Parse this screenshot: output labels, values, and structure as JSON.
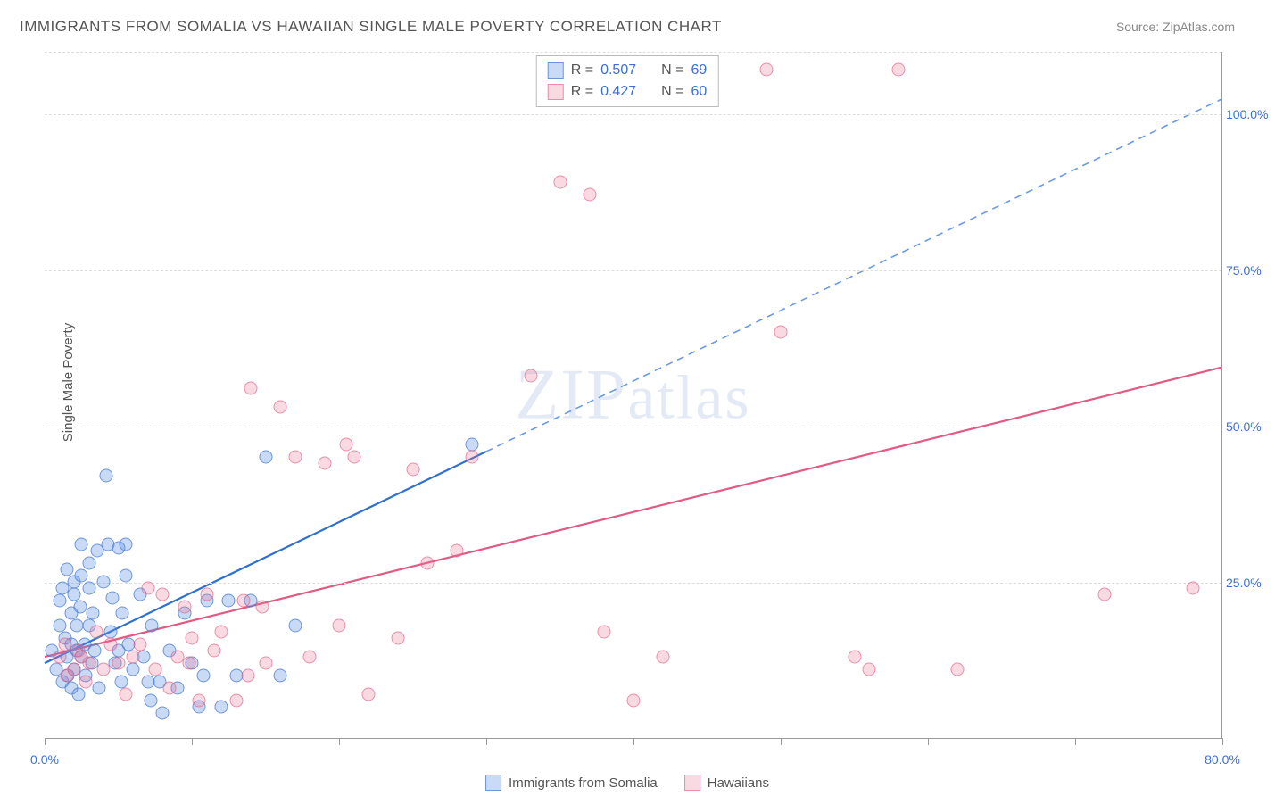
{
  "title": "IMMIGRANTS FROM SOMALIA VS HAWAIIAN SINGLE MALE POVERTY CORRELATION CHART",
  "source_label": "Source:",
  "source_value": "ZipAtlas.com",
  "y_axis_label": "Single Male Poverty",
  "watermark": "ZIPatlas",
  "chart": {
    "type": "scatter",
    "background_color": "#ffffff",
    "grid_color": "#dddddd",
    "axis_color": "#999999",
    "tick_label_color": "#3d6fd6",
    "axis_label_color": "#555555",
    "title_color": "#555555",
    "xlim": [
      0,
      80
    ],
    "ylim": [
      0,
      110
    ],
    "x_ticks": [
      0,
      10,
      20,
      30,
      40,
      50,
      60,
      70,
      80
    ],
    "x_tick_labels": {
      "0": "0.0%",
      "80": "80.0%"
    },
    "y_ticks": [
      25,
      50,
      75,
      100
    ],
    "y_tick_labels": {
      "25": "25.0%",
      "50": "50.0%",
      "75": "75.0%",
      "100": "100.0%"
    },
    "point_radius": 7.5,
    "series": [
      {
        "key": "a",
        "name": "Immigrants from Somalia",
        "fill_color": "rgba(96,150,230,0.35)",
        "stroke_color": "rgba(70,120,210,0.7)",
        "trend_color": "#2f6fd0",
        "trend_dash_color": "#6a9ae5",
        "trend_solid_xmax": 30,
        "trend_width": 2.2,
        "R": "0.507",
        "N": "69",
        "trend": {
          "intercept": 12,
          "slope": 1.13
        },
        "points": [
          [
            0.5,
            14
          ],
          [
            0.8,
            11
          ],
          [
            1,
            18
          ],
          [
            1,
            22
          ],
          [
            1.2,
            9
          ],
          [
            1.2,
            24
          ],
          [
            1.4,
            16
          ],
          [
            1.5,
            13
          ],
          [
            1.5,
            27
          ],
          [
            1.6,
            10
          ],
          [
            1.8,
            20
          ],
          [
            1.8,
            8
          ],
          [
            1.8,
            15
          ],
          [
            2,
            23
          ],
          [
            2,
            25
          ],
          [
            2,
            11
          ],
          [
            2.2,
            14
          ],
          [
            2.2,
            18
          ],
          [
            2.3,
            7
          ],
          [
            2.4,
            21
          ],
          [
            2.5,
            31
          ],
          [
            2.5,
            13
          ],
          [
            2.5,
            26
          ],
          [
            2.7,
            15
          ],
          [
            2.8,
            10
          ],
          [
            3,
            24
          ],
          [
            3,
            28
          ],
          [
            3,
            18
          ],
          [
            3.2,
            12
          ],
          [
            3.3,
            20
          ],
          [
            3.4,
            14
          ],
          [
            3.6,
            30
          ],
          [
            3.7,
            8
          ],
          [
            4,
            25
          ],
          [
            4.2,
            42
          ],
          [
            4.5,
            17
          ],
          [
            4.6,
            22.5
          ],
          [
            4.8,
            12
          ],
          [
            5,
            30.5
          ],
          [
            5,
            14
          ],
          [
            5.2,
            9
          ],
          [
            5.3,
            20
          ],
          [
            5.5,
            26
          ],
          [
            5.7,
            15
          ],
          [
            6,
            11
          ],
          [
            6.5,
            23
          ],
          [
            6.7,
            13
          ],
          [
            7,
            9
          ],
          [
            7.2,
            6
          ],
          [
            7.3,
            18
          ],
          [
            7.8,
            9
          ],
          [
            8,
            4
          ],
          [
            8.5,
            14
          ],
          [
            9,
            8
          ],
          [
            9.5,
            20
          ],
          [
            10,
            12
          ],
          [
            10.5,
            5
          ],
          [
            10.8,
            10
          ],
          [
            11,
            22
          ],
          [
            12,
            5
          ],
          [
            12.5,
            22
          ],
          [
            13,
            10
          ],
          [
            14,
            22
          ],
          [
            15,
            45
          ],
          [
            16,
            10
          ],
          [
            17,
            18
          ],
          [
            29,
            47
          ],
          [
            4.3,
            31
          ],
          [
            5.5,
            31
          ]
        ]
      },
      {
        "key": "b",
        "name": "Hawaiians",
        "fill_color": "rgba(235,120,150,0.28)",
        "stroke_color": "rgba(225,90,130,0.6)",
        "trend_color": "#e25a82",
        "trend_dash_color": "#e25a82",
        "trend_solid_xmax": 80,
        "trend_width": 2.2,
        "R": "0.427",
        "N": "60",
        "trend": {
          "intercept": 13,
          "slope": 0.58
        },
        "points": [
          [
            1,
            13
          ],
          [
            1.4,
            15
          ],
          [
            1.5,
            10
          ],
          [
            2,
            11
          ],
          [
            2.3,
            14
          ],
          [
            2.5,
            13
          ],
          [
            2.8,
            9
          ],
          [
            3,
            12
          ],
          [
            3.5,
            17
          ],
          [
            4,
            11
          ],
          [
            4.5,
            15
          ],
          [
            5,
            12
          ],
          [
            5.5,
            7
          ],
          [
            6,
            13
          ],
          [
            6.5,
            15
          ],
          [
            7,
            24
          ],
          [
            7.5,
            11
          ],
          [
            8,
            23
          ],
          [
            8.5,
            8
          ],
          [
            9,
            13
          ],
          [
            9.5,
            21
          ],
          [
            9.8,
            12
          ],
          [
            10,
            16
          ],
          [
            10.5,
            6
          ],
          [
            11,
            23
          ],
          [
            11.5,
            14
          ],
          [
            12,
            17
          ],
          [
            13,
            6
          ],
          [
            13.5,
            22
          ],
          [
            13.8,
            10
          ],
          [
            14,
            56
          ],
          [
            14.8,
            21
          ],
          [
            15,
            12
          ],
          [
            16,
            53
          ],
          [
            17,
            45
          ],
          [
            18,
            13
          ],
          [
            19,
            44
          ],
          [
            20,
            18
          ],
          [
            20.5,
            47
          ],
          [
            21,
            45
          ],
          [
            22,
            7
          ],
          [
            24,
            16
          ],
          [
            25,
            43
          ],
          [
            26,
            28
          ],
          [
            28,
            30
          ],
          [
            29,
            45
          ],
          [
            33,
            58
          ],
          [
            35,
            89
          ],
          [
            37,
            87
          ],
          [
            38,
            17
          ],
          [
            40,
            6
          ],
          [
            42,
            13
          ],
          [
            49,
            107
          ],
          [
            50,
            65
          ],
          [
            55,
            13
          ],
          [
            56,
            11
          ],
          [
            58,
            107
          ],
          [
            62,
            11
          ],
          [
            72,
            23
          ],
          [
            78,
            24
          ]
        ]
      }
    ]
  },
  "legend_top": {
    "r_label": "R =",
    "n_label": "N ="
  },
  "legend_bottom": {
    "series_a": "Immigrants from Somalia",
    "series_b": "Hawaiians"
  }
}
